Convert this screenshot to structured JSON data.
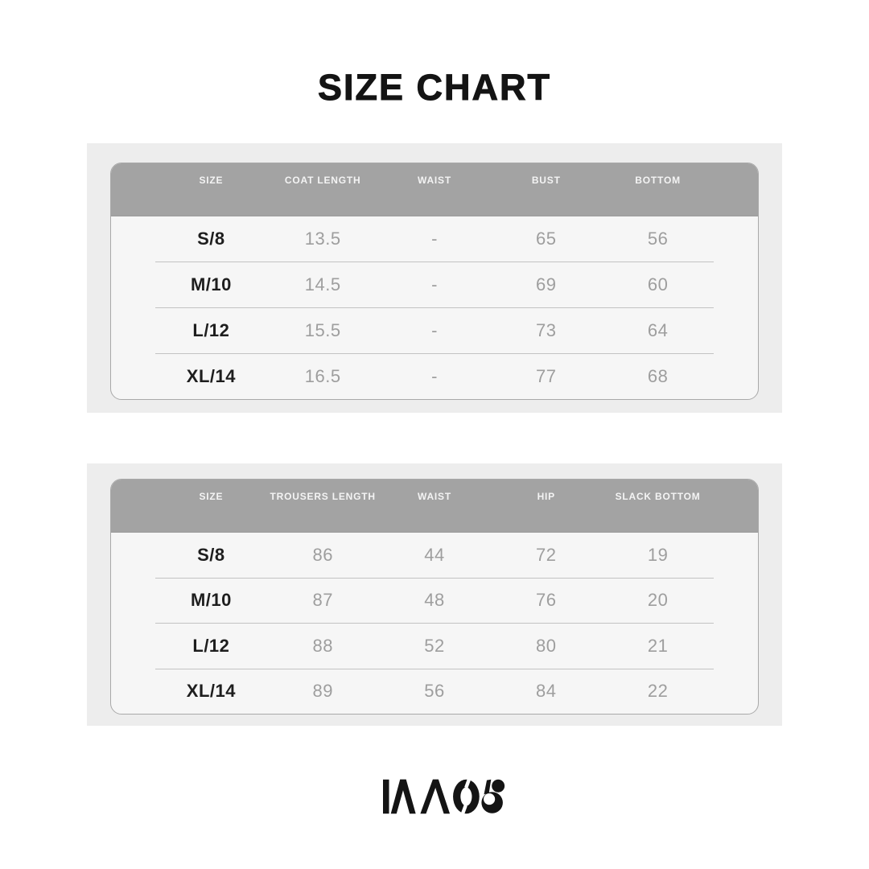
{
  "page": {
    "title": "SIZE CHART",
    "brand": "KAOS"
  },
  "colors": {
    "title_text": "#141414",
    "panel_bg": "#ededed",
    "card_bg": "#f6f6f6",
    "card_border": "#a9a9a9",
    "header_bg": "#a3a3a3",
    "header_text": "#f4f4f4",
    "size_text": "#1e1e1e",
    "value_text": "#9e9e9e",
    "divider": "#c3c3c3",
    "logo_color": "#141414"
  },
  "tables": [
    {
      "name": "coat-measurements",
      "columns": [
        "SIZE",
        "COAT LENGTH",
        "WAIST",
        "BUST",
        "BOTTOM"
      ],
      "rows": [
        {
          "size": "S/8",
          "values": [
            "13.5",
            "-",
            "65",
            "56"
          ]
        },
        {
          "size": "M/10",
          "values": [
            "14.5",
            "-",
            "69",
            "60"
          ]
        },
        {
          "size": "L/12",
          "values": [
            "15.5",
            "-",
            "73",
            "64"
          ]
        },
        {
          "size": "XL/14",
          "values": [
            "16.5",
            "-",
            "77",
            "68"
          ]
        }
      ]
    },
    {
      "name": "trousers-measurements",
      "columns": [
        "SIZE",
        "TROUSERS LENGTH",
        "WAIST",
        "HIP",
        "SLACK BOTTOM"
      ],
      "rows": [
        {
          "size": "S/8",
          "values": [
            "86",
            "44",
            "72",
            "19"
          ]
        },
        {
          "size": "M/10",
          "values": [
            "87",
            "48",
            "76",
            "20"
          ]
        },
        {
          "size": "L/12",
          "values": [
            "88",
            "52",
            "80",
            "21"
          ]
        },
        {
          "size": "XL/14",
          "values": [
            "89",
            "56",
            "84",
            "22"
          ]
        }
      ]
    }
  ]
}
